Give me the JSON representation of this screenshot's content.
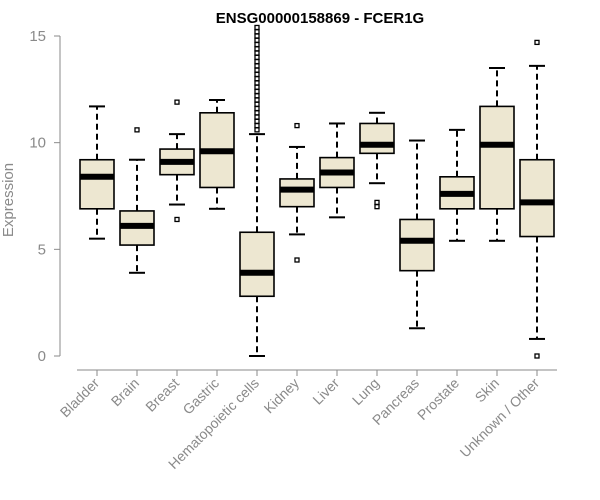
{
  "chart_data": {
    "type": "boxplot",
    "title": "ENSG00000158869 - FCER1G",
    "xlabel": "",
    "ylabel": "Expression",
    "ylim": [
      0,
      15
    ],
    "yticks": [
      0,
      5,
      10,
      15
    ],
    "categories": [
      "Bladder",
      "Brain",
      "Breast",
      "Gastric",
      "Hematopoietic cells",
      "Kidney",
      "Liver",
      "Lung",
      "Pancreas",
      "Prostate",
      "Skin",
      "Unknown / Other"
    ],
    "boxes": [
      {
        "category": "Bladder",
        "min": 5.5,
        "q1": 6.9,
        "median": 8.4,
        "q3": 9.2,
        "max": 11.7,
        "outliers": []
      },
      {
        "category": "Brain",
        "min": 3.9,
        "q1": 5.2,
        "median": 6.1,
        "q3": 6.8,
        "max": 9.2,
        "outliers": [
          10.6
        ]
      },
      {
        "category": "Breast",
        "min": 7.1,
        "q1": 8.5,
        "median": 9.1,
        "q3": 9.7,
        "max": 10.4,
        "outliers": [
          11.9,
          6.4
        ]
      },
      {
        "category": "Gastric",
        "min": 6.9,
        "q1": 7.9,
        "median": 9.6,
        "q3": 11.4,
        "max": 12.0,
        "outliers": []
      },
      {
        "category": "Hematopoietic cells",
        "min": 0.0,
        "q1": 2.8,
        "median": 3.9,
        "q3": 5.8,
        "max": 10.4,
        "outliers": [
          10.6,
          10.8,
          11.0,
          11.2,
          11.4,
          11.6,
          11.8,
          12.0,
          12.2,
          12.4,
          12.6,
          12.8,
          13.0,
          13.2,
          13.4,
          13.6,
          13.8,
          14.0,
          14.2,
          14.4,
          14.6,
          14.8,
          15.0,
          15.2,
          15.4
        ]
      },
      {
        "category": "Kidney",
        "min": 5.7,
        "q1": 7.0,
        "median": 7.8,
        "q3": 8.3,
        "max": 9.8,
        "outliers": [
          10.8,
          4.5
        ]
      },
      {
        "category": "Liver",
        "min": 6.5,
        "q1": 7.9,
        "median": 8.6,
        "q3": 9.3,
        "max": 10.9,
        "outliers": []
      },
      {
        "category": "Lung",
        "min": 8.1,
        "q1": 9.5,
        "median": 9.9,
        "q3": 10.9,
        "max": 11.4,
        "outliers": [
          7.2,
          7.0
        ]
      },
      {
        "category": "Pancreas",
        "min": 1.3,
        "q1": 4.0,
        "median": 5.4,
        "q3": 6.4,
        "max": 10.1,
        "outliers": []
      },
      {
        "category": "Prostate",
        "min": 5.4,
        "q1": 6.9,
        "median": 7.6,
        "q3": 8.4,
        "max": 10.6,
        "outliers": []
      },
      {
        "category": "Skin",
        "min": 5.4,
        "q1": 6.9,
        "median": 9.9,
        "q3": 11.7,
        "max": 13.5,
        "outliers": []
      },
      {
        "category": "Unknown / Other",
        "min": 0.8,
        "q1": 5.6,
        "median": 7.2,
        "q3": 9.2,
        "max": 13.6,
        "outliers": [
          14.7,
          0.0
        ]
      }
    ]
  }
}
